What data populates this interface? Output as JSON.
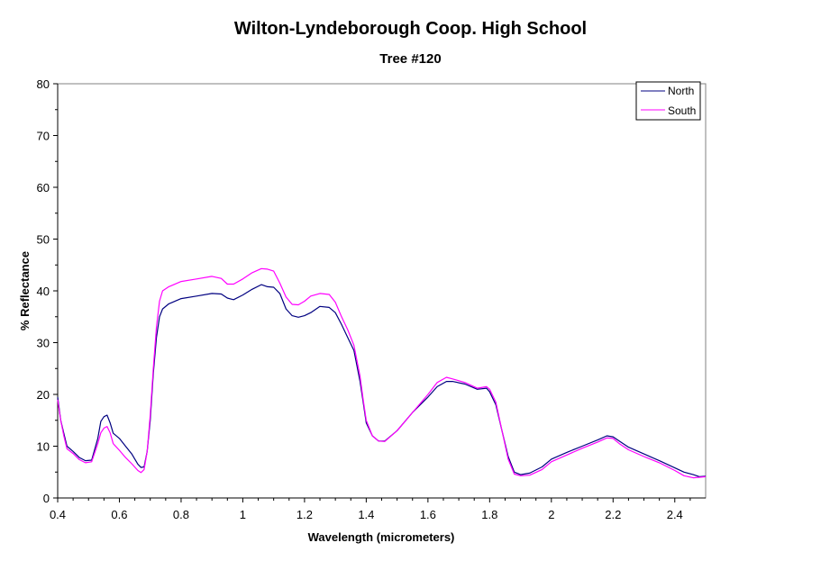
{
  "chart_data": {
    "type": "line",
    "title": "Wilton-Lyndeborough Coop. High School",
    "subtitle": "Tree #120",
    "xlabel": "Wavelength (micrometers)",
    "ylabel": "% Reflectance",
    "xlim": [
      0.4,
      2.5
    ],
    "ylim": [
      0,
      80
    ],
    "xticks": [
      "0.4",
      "0.6",
      "0.8",
      "1",
      "1.2",
      "1.4",
      "1.6",
      "1.8",
      "2",
      "2.2",
      "2.4"
    ],
    "yticks": [
      "0",
      "10",
      "20",
      "30",
      "40",
      "50",
      "60",
      "70",
      "80"
    ],
    "grid": false,
    "legend_position": "top-right",
    "series": [
      {
        "name": "North",
        "color": "#000080",
        "points": [
          [
            0.4,
            19.5
          ],
          [
            0.41,
            15.0
          ],
          [
            0.42,
            12.5
          ],
          [
            0.43,
            10.0
          ],
          [
            0.45,
            9.0
          ],
          [
            0.47,
            7.8
          ],
          [
            0.49,
            7.2
          ],
          [
            0.51,
            7.3
          ],
          [
            0.53,
            11.5
          ],
          [
            0.54,
            14.8
          ],
          [
            0.55,
            15.7
          ],
          [
            0.56,
            16.0
          ],
          [
            0.57,
            14.5
          ],
          [
            0.58,
            12.5
          ],
          [
            0.6,
            11.5
          ],
          [
            0.62,
            10.0
          ],
          [
            0.64,
            8.5
          ],
          [
            0.66,
            6.5
          ],
          [
            0.67,
            5.9
          ],
          [
            0.68,
            6.0
          ],
          [
            0.69,
            9.0
          ],
          [
            0.7,
            15.0
          ],
          [
            0.71,
            24.0
          ],
          [
            0.72,
            31.0
          ],
          [
            0.73,
            35.0
          ],
          [
            0.74,
            36.5
          ],
          [
            0.76,
            37.5
          ],
          [
            0.8,
            38.5
          ],
          [
            0.85,
            39.0
          ],
          [
            0.9,
            39.5
          ],
          [
            0.93,
            39.4
          ],
          [
            0.95,
            38.6
          ],
          [
            0.97,
            38.3
          ],
          [
            1.0,
            39.2
          ],
          [
            1.03,
            40.3
          ],
          [
            1.06,
            41.2
          ],
          [
            1.08,
            40.8
          ],
          [
            1.1,
            40.7
          ],
          [
            1.12,
            39.5
          ],
          [
            1.14,
            36.5
          ],
          [
            1.16,
            35.2
          ],
          [
            1.18,
            34.9
          ],
          [
            1.2,
            35.2
          ],
          [
            1.22,
            35.8
          ],
          [
            1.25,
            37.0
          ],
          [
            1.28,
            36.8
          ],
          [
            1.3,
            35.8
          ],
          [
            1.32,
            33.5
          ],
          [
            1.34,
            31.0
          ],
          [
            1.36,
            28.5
          ],
          [
            1.38,
            22.5
          ],
          [
            1.39,
            18.5
          ],
          [
            1.4,
            14.5
          ],
          [
            1.42,
            12.0
          ],
          [
            1.44,
            11.0
          ],
          [
            1.46,
            11.0
          ],
          [
            1.5,
            13.0
          ],
          [
            1.55,
            16.5
          ],
          [
            1.6,
            19.5
          ],
          [
            1.63,
            21.5
          ],
          [
            1.66,
            22.5
          ],
          [
            1.68,
            22.5
          ],
          [
            1.72,
            22.0
          ],
          [
            1.76,
            21.0
          ],
          [
            1.79,
            21.2
          ],
          [
            1.8,
            20.5
          ],
          [
            1.82,
            18.0
          ],
          [
            1.84,
            13.0
          ],
          [
            1.86,
            8.0
          ],
          [
            1.88,
            5.0
          ],
          [
            1.9,
            4.5
          ],
          [
            1.93,
            4.8
          ],
          [
            1.97,
            6.0
          ],
          [
            2.0,
            7.5
          ],
          [
            2.05,
            8.8
          ],
          [
            2.1,
            10.0
          ],
          [
            2.15,
            11.2
          ],
          [
            2.18,
            12.0
          ],
          [
            2.2,
            11.8
          ],
          [
            2.22,
            11.0
          ],
          [
            2.25,
            9.8
          ],
          [
            2.3,
            8.5
          ],
          [
            2.35,
            7.2
          ],
          [
            2.4,
            5.8
          ],
          [
            2.43,
            5.0
          ],
          [
            2.46,
            4.5
          ],
          [
            2.48,
            4.1
          ],
          [
            2.5,
            4.2
          ]
        ]
      },
      {
        "name": "South",
        "color": "#ff00ff",
        "points": [
          [
            0.4,
            19.0
          ],
          [
            0.41,
            15.0
          ],
          [
            0.42,
            12.0
          ],
          [
            0.43,
            9.5
          ],
          [
            0.45,
            8.6
          ],
          [
            0.47,
            7.4
          ],
          [
            0.49,
            6.8
          ],
          [
            0.51,
            7.0
          ],
          [
            0.53,
            10.5
          ],
          [
            0.54,
            12.6
          ],
          [
            0.55,
            13.5
          ],
          [
            0.56,
            13.8
          ],
          [
            0.57,
            12.6
          ],
          [
            0.58,
            10.5
          ],
          [
            0.6,
            9.2
          ],
          [
            0.62,
            7.8
          ],
          [
            0.64,
            6.6
          ],
          [
            0.66,
            5.3
          ],
          [
            0.67,
            4.9
          ],
          [
            0.68,
            5.5
          ],
          [
            0.69,
            9.0
          ],
          [
            0.7,
            16.0
          ],
          [
            0.71,
            25.0
          ],
          [
            0.72,
            33.0
          ],
          [
            0.73,
            38.0
          ],
          [
            0.74,
            40.0
          ],
          [
            0.76,
            40.8
          ],
          [
            0.8,
            41.8
          ],
          [
            0.85,
            42.3
          ],
          [
            0.9,
            42.8
          ],
          [
            0.93,
            42.4
          ],
          [
            0.95,
            41.3
          ],
          [
            0.97,
            41.3
          ],
          [
            1.0,
            42.3
          ],
          [
            1.03,
            43.5
          ],
          [
            1.06,
            44.3
          ],
          [
            1.08,
            44.2
          ],
          [
            1.1,
            43.8
          ],
          [
            1.12,
            41.5
          ],
          [
            1.14,
            38.8
          ],
          [
            1.16,
            37.4
          ],
          [
            1.18,
            37.3
          ],
          [
            1.2,
            38.0
          ],
          [
            1.22,
            39.0
          ],
          [
            1.25,
            39.5
          ],
          [
            1.28,
            39.3
          ],
          [
            1.3,
            37.8
          ],
          [
            1.32,
            35.0
          ],
          [
            1.34,
            32.5
          ],
          [
            1.36,
            29.5
          ],
          [
            1.38,
            23.5
          ],
          [
            1.39,
            19.0
          ],
          [
            1.4,
            15.0
          ],
          [
            1.42,
            12.0
          ],
          [
            1.44,
            11.0
          ],
          [
            1.46,
            10.9
          ],
          [
            1.5,
            13.0
          ],
          [
            1.55,
            16.5
          ],
          [
            1.6,
            20.0
          ],
          [
            1.63,
            22.3
          ],
          [
            1.66,
            23.3
          ],
          [
            1.68,
            23.0
          ],
          [
            1.72,
            22.3
          ],
          [
            1.76,
            21.2
          ],
          [
            1.79,
            21.5
          ],
          [
            1.8,
            21.0
          ],
          [
            1.82,
            18.5
          ],
          [
            1.84,
            13.0
          ],
          [
            1.86,
            7.5
          ],
          [
            1.88,
            4.6
          ],
          [
            1.9,
            4.3
          ],
          [
            1.93,
            4.4
          ],
          [
            1.97,
            5.5
          ],
          [
            2.0,
            7.0
          ],
          [
            2.05,
            8.3
          ],
          [
            2.1,
            9.6
          ],
          [
            2.15,
            10.8
          ],
          [
            2.18,
            11.6
          ],
          [
            2.2,
            11.5
          ],
          [
            2.22,
            10.5
          ],
          [
            2.25,
            9.3
          ],
          [
            2.3,
            8.0
          ],
          [
            2.35,
            6.8
          ],
          [
            2.4,
            5.3
          ],
          [
            2.43,
            4.3
          ],
          [
            2.46,
            3.9
          ],
          [
            2.48,
            4.0
          ],
          [
            2.5,
            4.1
          ]
        ]
      }
    ]
  }
}
